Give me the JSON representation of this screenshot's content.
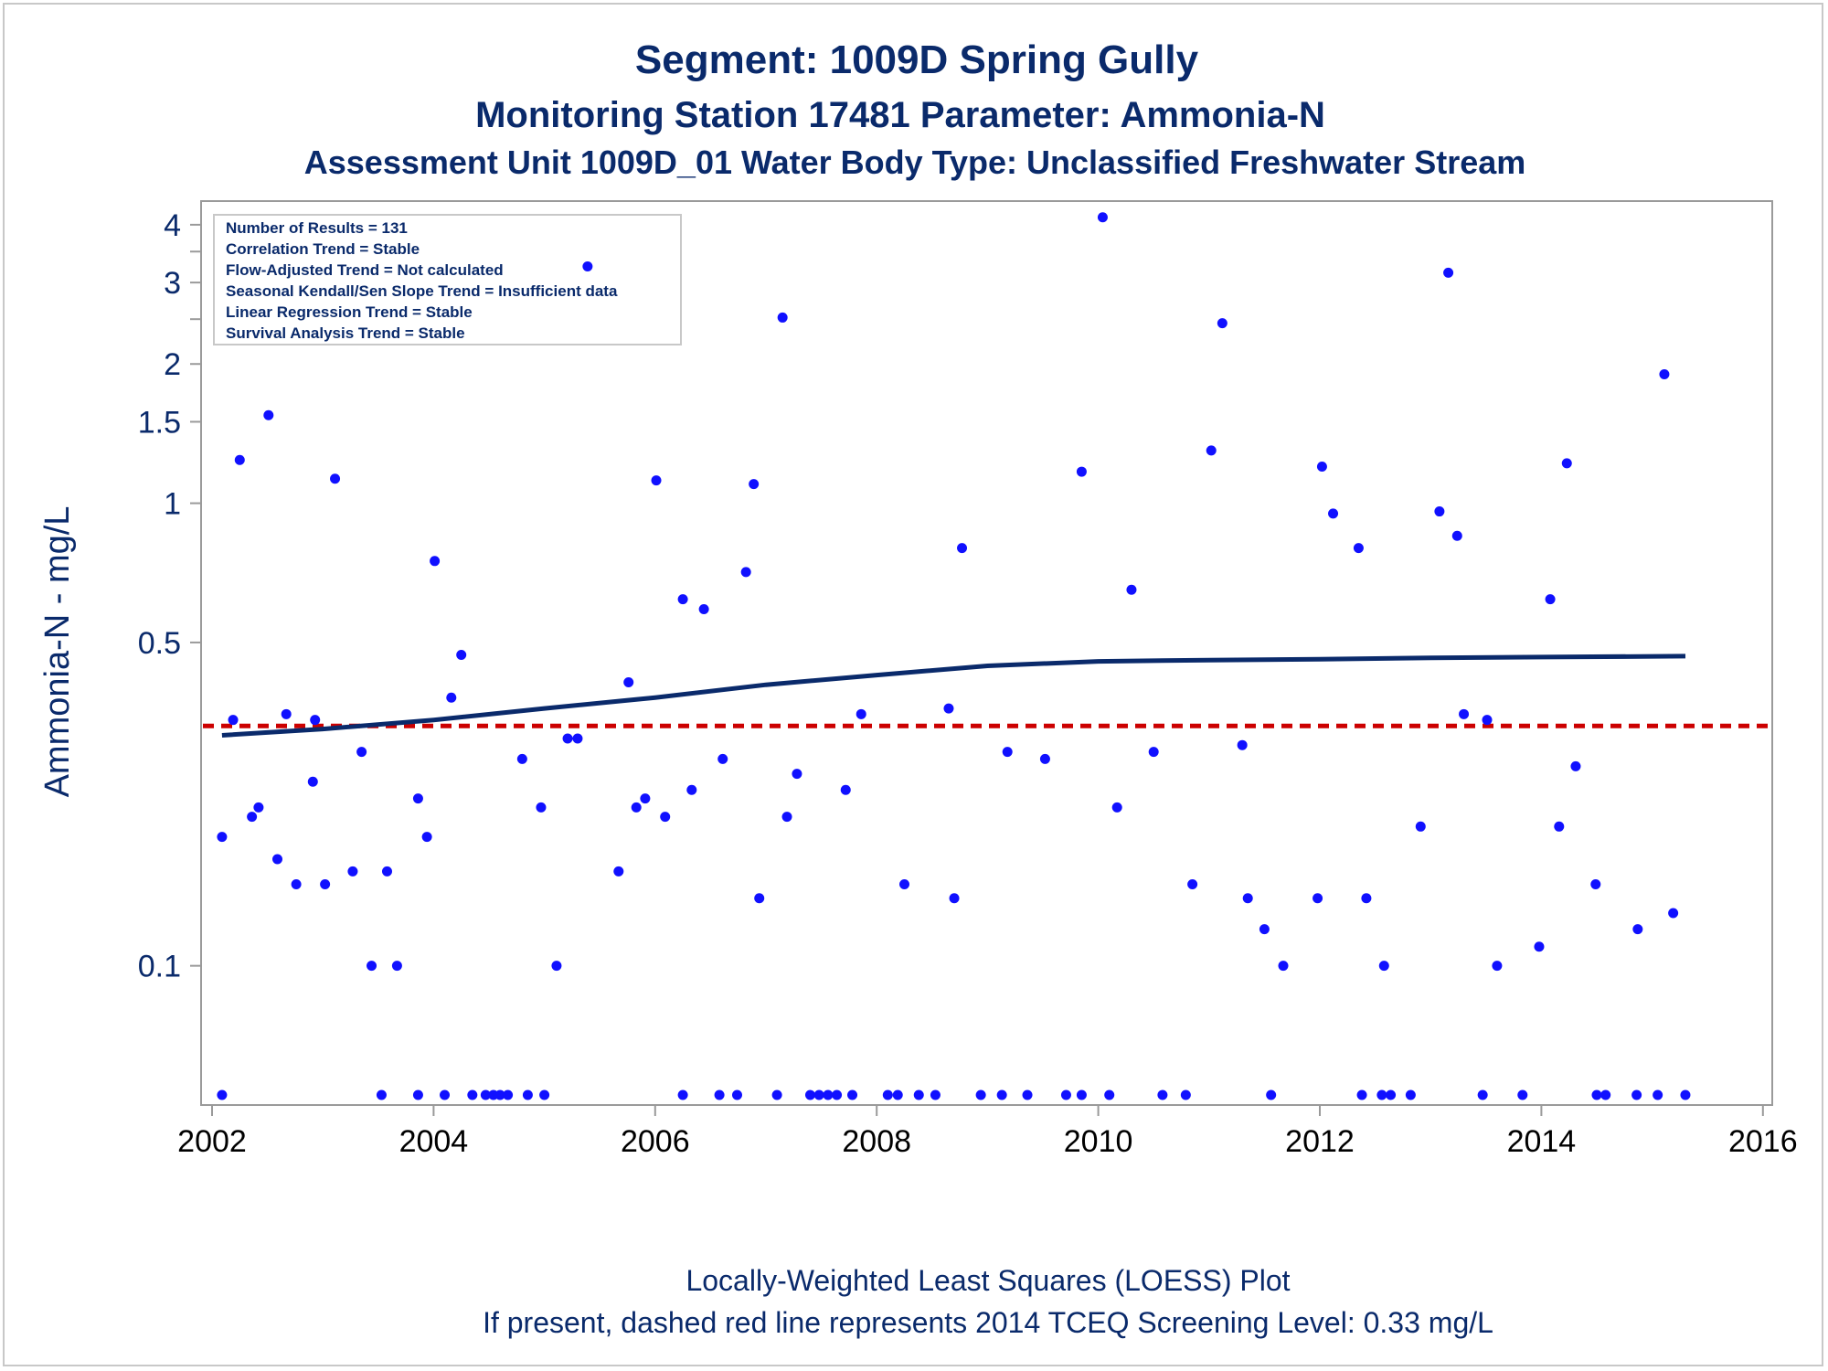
{
  "chart_data": {
    "type": "scatter",
    "title": "Segment: 1009D  Spring Gully",
    "subtitle": "Monitoring Station 17481 Parameter: Ammonia-N",
    "subtitle2": "Assessment Unit 1009D_01   Water Body Type: Unclassified Freshwater Stream",
    "ylabel": "Ammonia-N - mg/L",
    "xlabel": "",
    "y_scale": "log",
    "ylim": [
      0.05,
      4.5
    ],
    "xlim": [
      2002,
      2016
    ],
    "x_ticks": [
      "2002",
      "2004",
      "2006",
      "2008",
      "2010",
      "2012",
      "2014",
      "2016"
    ],
    "y_ticks": [
      {
        "value": 0.1,
        "label": "0.1"
      },
      {
        "value": 0.5,
        "label": "0.5"
      },
      {
        "value": 1,
        "label": "1"
      },
      {
        "value": 1.5,
        "label": "1.5"
      },
      {
        "value": 2,
        "label": "2"
      },
      {
        "value": 3,
        "label": "3"
      },
      {
        "value": 4,
        "label": "4"
      }
    ],
    "y_minor_ticks": [
      2.5,
      3.5
    ],
    "legend": {
      "placement": "top-left",
      "entries": [
        "Number of Results = 131",
        "Correlation Trend = Stable",
        "Flow-Adjusted Trend = Not calculated",
        "Seasonal Kendall/Sen Slope Trend = Insufficient data",
        "Linear Regression Trend = Stable",
        "Survival Analysis Trend = Stable"
      ]
    },
    "series": [
      {
        "type": "scatter",
        "color": "#1010ff",
        "points": [
          [
            2002.09,
            0.19
          ],
          [
            2002.19,
            0.34
          ],
          [
            2002.25,
            1.24
          ],
          [
            2002.36,
            0.21
          ],
          [
            2002.42,
            0.22
          ],
          [
            2002.51,
            1.55
          ],
          [
            2002.59,
            0.17
          ],
          [
            2002.67,
            0.35
          ],
          [
            2002.76,
            0.15
          ],
          [
            2002.91,
            0.25
          ],
          [
            2002.93,
            0.34
          ],
          [
            2003.02,
            0.15
          ],
          [
            2003.11,
            1.13
          ],
          [
            2003.27,
            0.16
          ],
          [
            2003.35,
            0.29
          ],
          [
            2003.44,
            0.1
          ],
          [
            2003.58,
            0.16
          ],
          [
            2003.67,
            0.1
          ],
          [
            2003.86,
            0.23
          ],
          [
            2003.94,
            0.19
          ],
          [
            2004.01,
            0.75
          ],
          [
            2004.16,
            0.38
          ],
          [
            2004.25,
            0.47
          ],
          [
            2004.8,
            0.28
          ],
          [
            2004.97,
            0.22
          ],
          [
            2005.11,
            0.1
          ],
          [
            2005.21,
            0.31
          ],
          [
            2005.3,
            0.31
          ],
          [
            2005.39,
            3.25
          ],
          [
            2005.67,
            0.16
          ],
          [
            2005.76,
            0.41
          ],
          [
            2005.83,
            0.22
          ],
          [
            2005.91,
            0.23
          ],
          [
            2006.01,
            1.12
          ],
          [
            2006.09,
            0.21
          ],
          [
            2006.25,
            0.62
          ],
          [
            2006.33,
            0.24
          ],
          [
            2006.44,
            0.59
          ],
          [
            2006.61,
            0.28
          ],
          [
            2006.82,
            0.71
          ],
          [
            2006.89,
            1.1
          ],
          [
            2006.94,
            0.14
          ],
          [
            2007.15,
            2.52
          ],
          [
            2007.19,
            0.21
          ],
          [
            2007.28,
            0.26
          ],
          [
            2007.72,
            0.24
          ],
          [
            2007.86,
            0.35
          ],
          [
            2008.25,
            0.15
          ],
          [
            2008.65,
            0.36
          ],
          [
            2008.7,
            0.14
          ],
          [
            2008.77,
            0.8
          ],
          [
            2009.18,
            0.29
          ],
          [
            2009.52,
            0.28
          ],
          [
            2009.85,
            1.17
          ],
          [
            2010.04,
            4.15
          ],
          [
            2010.17,
            0.22
          ],
          [
            2010.3,
            0.65
          ],
          [
            2010.5,
            0.29
          ],
          [
            2010.85,
            0.15
          ],
          [
            2011.02,
            1.3
          ],
          [
            2011.12,
            2.45
          ],
          [
            2011.3,
            0.3
          ],
          [
            2011.35,
            0.14
          ],
          [
            2011.5,
            0.12
          ],
          [
            2011.67,
            0.1
          ],
          [
            2011.98,
            0.14
          ],
          [
            2012.02,
            1.2
          ],
          [
            2012.12,
            0.95
          ],
          [
            2012.35,
            0.8
          ],
          [
            2012.42,
            0.14
          ],
          [
            2012.58,
            0.1
          ],
          [
            2012.91,
            0.2
          ],
          [
            2013.08,
            0.96
          ],
          [
            2013.16,
            3.15
          ],
          [
            2013.24,
            0.85
          ],
          [
            2013.3,
            0.35
          ],
          [
            2013.51,
            0.34
          ],
          [
            2013.6,
            0.1
          ],
          [
            2013.98,
            0.11
          ],
          [
            2014.08,
            0.62
          ],
          [
            2014.16,
            0.2
          ],
          [
            2014.23,
            1.22
          ],
          [
            2014.31,
            0.27
          ],
          [
            2014.49,
            0.15
          ],
          [
            2014.87,
            0.12
          ],
          [
            2015.11,
            1.9
          ],
          [
            2015.19,
            0.13
          ]
        ],
        "censored_points_x": [
          2002.09,
          2003.53,
          2003.86,
          2004.1,
          2004.35,
          2004.47,
          2004.54,
          2004.6,
          2004.67,
          2004.85,
          2005.0,
          2006.25,
          2006.58,
          2006.74,
          2007.1,
          2007.4,
          2007.48,
          2007.56,
          2007.64,
          2007.78,
          2008.1,
          2008.19,
          2008.38,
          2008.53,
          2008.94,
          2009.13,
          2009.36,
          2009.71,
          2009.85,
          2010.1,
          2010.58,
          2010.79,
          2011.56,
          2012.38,
          2012.56,
          2012.64,
          2012.82,
          2013.47,
          2013.83,
          2014.5,
          2014.58,
          2014.86,
          2015.05,
          2015.3
        ],
        "censored_value_below_axis": true
      },
      {
        "type": "line",
        "name": "LOESS",
        "color": "#0a2a6b",
        "points": [
          [
            2002.09,
            0.315
          ],
          [
            2003.0,
            0.325
          ],
          [
            2004.0,
            0.34
          ],
          [
            2005.0,
            0.36
          ],
          [
            2006.0,
            0.38
          ],
          [
            2007.0,
            0.405
          ],
          [
            2008.0,
            0.425
          ],
          [
            2009.0,
            0.445
          ],
          [
            2010.0,
            0.455
          ],
          [
            2011.0,
            0.458
          ],
          [
            2012.0,
            0.46
          ],
          [
            2013.0,
            0.463
          ],
          [
            2014.0,
            0.465
          ],
          [
            2015.3,
            0.467
          ]
        ]
      },
      {
        "type": "hline",
        "name": "2014 TCEQ Screening Level",
        "color": "#cc0000",
        "style": "dashed",
        "y": 0.33
      }
    ],
    "footnote": "Locally-Weighted Least Squares (LOESS) Plot",
    "footnote2": "If present, dashed red line represents 2014 TCEQ Screening Level: 0.33 mg/L",
    "grid": false
  }
}
